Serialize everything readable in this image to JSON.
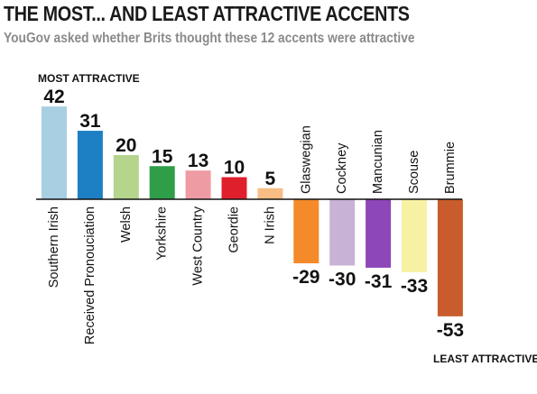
{
  "header": {
    "title": "THE MOST... AND LEAST ATTRACTIVE ACCENTS",
    "subtitle": "YouGov asked whether Brits thought these 12 accents were attractive"
  },
  "annotations": {
    "most": "MOST ATTRACTIVE",
    "least": "LEAST ATTRACTIVE"
  },
  "chart_data": {
    "type": "bar",
    "title": "THE MOST... AND LEAST ATTRACTIVE ACCENTS",
    "subtitle": "YouGov asked whether Brits thought these 12 accents were attractive",
    "categories": [
      "Southern Irish",
      "Received Pronouciation",
      "Welsh",
      "Yorkshire",
      "West Country",
      "Geordie",
      "N Irish",
      "Glaswegian",
      "Cockney",
      "Mancunian",
      "Scouse",
      "Brummie"
    ],
    "values": [
      42,
      31,
      20,
      15,
      13,
      10,
      5,
      -29,
      -30,
      -31,
      -33,
      -53
    ],
    "value_labels": [
      "42",
      "31",
      "20",
      "15",
      "13",
      "10",
      "5",
      "-29",
      "-30",
      "-31",
      "-33",
      "-53"
    ],
    "colors": [
      "#a8cfe2",
      "#1d7fc4",
      "#b5d48c",
      "#2f9e48",
      "#ef9ba3",
      "#e01f2d",
      "#f8bd84",
      "#f48a2a",
      "#c8b2d6",
      "#8e47b8",
      "#f7f1a4",
      "#c85c2c"
    ],
    "ylim": [
      -55,
      45
    ],
    "legend": "none",
    "grid": false
  }
}
